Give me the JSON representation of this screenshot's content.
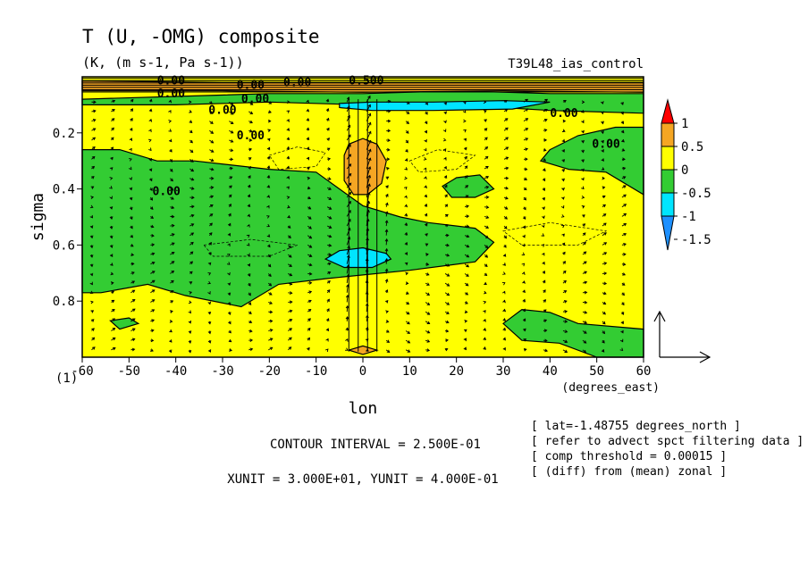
{
  "chart_data": {
    "type": "heatmap",
    "title": "T (U, -OMG) composite",
    "subtitle": "(K, (m s-1, Pa s-1))",
    "run_name": "T39L48_ias_control",
    "xlabel": "lon",
    "xunit_label": "(degrees_east)",
    "ylabel": "sigma",
    "y_extra_label": "(1)",
    "xlim": [
      -60,
      60
    ],
    "ylim": [
      1.0,
      0.0
    ],
    "y_reversed": true,
    "x_ticks": [
      -60,
      -50,
      -40,
      -30,
      -20,
      -10,
      0,
      10,
      20,
      30,
      40,
      50,
      60
    ],
    "x_tick_labels": [
      "-60",
      "-50",
      "-40",
      "-30",
      "-20",
      "-10",
      "0",
      "10",
      "20",
      "30",
      "40",
      "50",
      "60"
    ],
    "y_ticks": [
      0.2,
      0.4,
      0.6,
      0.8
    ],
    "y_tick_labels": [
      "0.2",
      "0.4",
      "0.6",
      "0.8"
    ],
    "colorbar": {
      "levels": [
        "1",
        "0.5",
        "0",
        "-0.5",
        "-1",
        "-1.5"
      ],
      "colors": [
        "#ff0000",
        "#f5a623",
        "#ffff00",
        "#33cc33",
        "#00e5ff",
        "#1e90ff",
        "#1e6fe0"
      ]
    },
    "contour_labels": [
      "0.00",
      "0.00",
      "0.00",
      "0.00",
      "0.00",
      "0.00",
      "0.00",
      "0.00",
      "0.00",
      "0.00",
      "0.500"
    ],
    "contour_interval_text": "CONTOUR INTERVAL = 2.500E-01",
    "unit_text": "XUNIT = 3.000E+01, YUNIT = 4.000E-01",
    "info_lines": [
      "[ lat=-1.48755 degrees_north ]",
      "[ refer to advect spct filtering data ]",
      "[ comp threshold = 0.00015 ]",
      "[ (diff) from (mean) zonal ]"
    ],
    "regions": [
      {
        "name": "upper-warm-band",
        "value": 0.5,
        "lon": [
          -60,
          60
        ],
        "sigma": [
          0.02,
          0.05
        ]
      },
      {
        "name": "upper-cold-band",
        "value": -1.0,
        "lon": [
          -5,
          40
        ],
        "sigma": [
          0.09,
          0.12
        ]
      },
      {
        "name": "central-warm-anomaly",
        "value": 0.5,
        "lon": [
          -5,
          5
        ],
        "sigma": [
          0.25,
          0.42
        ]
      },
      {
        "name": "central-cold-anomaly",
        "value": -1.0,
        "lon": [
          -8,
          6
        ],
        "sigma": [
          0.61,
          0.68
        ]
      },
      {
        "name": "surface-warm-spot",
        "value": 0.5,
        "lon": [
          -2,
          2
        ],
        "sigma": [
          0.96,
          0.99
        ]
      }
    ]
  }
}
